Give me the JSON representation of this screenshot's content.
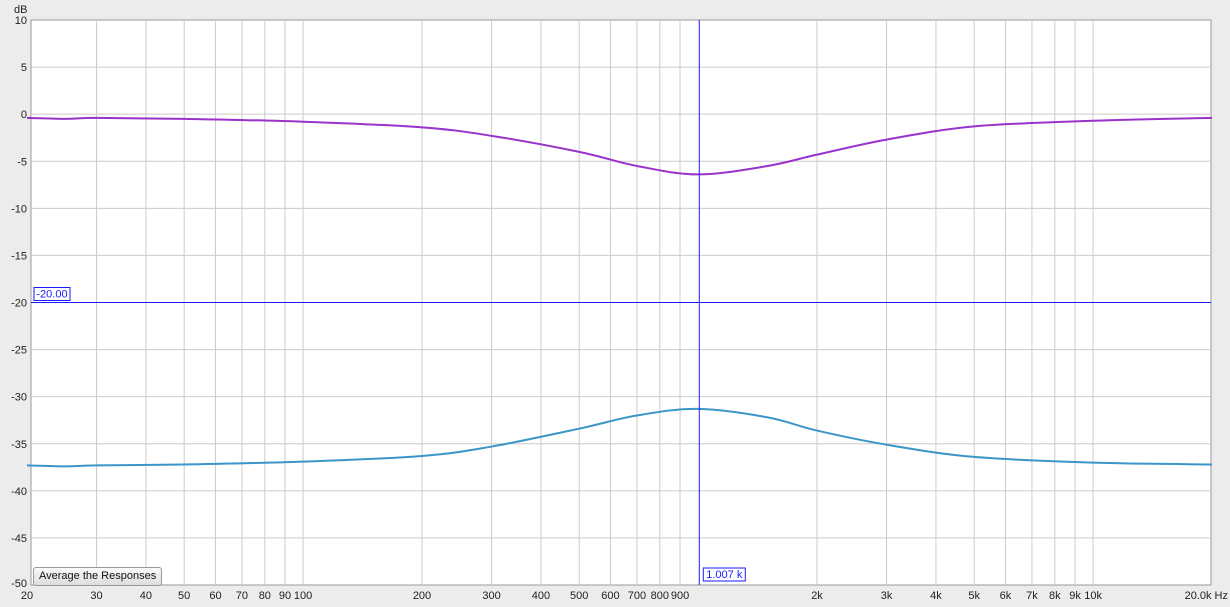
{
  "chart_data": {
    "type": "line",
    "title": "",
    "xlabel": "",
    "ylabel": "dB",
    "x_unit": "Hz",
    "x_scale": "log",
    "xlim": [
      20,
      20000
    ],
    "ylim": [
      -50,
      10
    ],
    "grid": true,
    "x_ticks": [
      {
        "v": 20,
        "l": "20"
      },
      {
        "v": 30,
        "l": "30"
      },
      {
        "v": 40,
        "l": "40"
      },
      {
        "v": 50,
        "l": "50"
      },
      {
        "v": 60,
        "l": "60"
      },
      {
        "v": 70,
        "l": "70"
      },
      {
        "v": 80,
        "l": "80"
      },
      {
        "v": 90,
        "l": "90"
      },
      {
        "v": 100,
        "l": "100"
      },
      {
        "v": 200,
        "l": "200"
      },
      {
        "v": 300,
        "l": "300"
      },
      {
        "v": 400,
        "l": "400"
      },
      {
        "v": 500,
        "l": "500"
      },
      {
        "v": 600,
        "l": "600"
      },
      {
        "v": 700,
        "l": "700"
      },
      {
        "v": 800,
        "l": "800"
      },
      {
        "v": 900,
        "l": "900"
      },
      {
        "v": 2000,
        "l": "2k"
      },
      {
        "v": 3000,
        "l": "3k"
      },
      {
        "v": 4000,
        "l": "4k"
      },
      {
        "v": 5000,
        "l": "5k"
      },
      {
        "v": 6000,
        "l": "6k"
      },
      {
        "v": 7000,
        "l": "7k"
      },
      {
        "v": 8000,
        "l": "8k"
      },
      {
        "v": 9000,
        "l": "9k"
      },
      {
        "v": 10000,
        "l": "10k"
      },
      {
        "v": 20000,
        "l": "20.0k Hz"
      }
    ],
    "y_ticks": [
      10,
      5,
      0,
      -5,
      -10,
      -15,
      -20,
      -25,
      -30,
      -35,
      -40,
      -45,
      -50
    ],
    "cursor": {
      "x": 1007,
      "x_label": "1.007 k",
      "y": -20,
      "y_label": "-20.00",
      "color": "#1a1aff"
    },
    "series": [
      {
        "color": "#9933cc",
        "x": [
          20,
          25,
          30,
          50,
          100,
          200,
          300,
          500,
          700,
          1000,
          1500,
          2000,
          3000,
          5000,
          10000,
          20000
        ],
        "y": [
          -0.4,
          -0.5,
          -0.4,
          -0.5,
          -0.8,
          -1.4,
          -2.3,
          -4.0,
          -5.5,
          -6.4,
          -5.5,
          -4.3,
          -2.7,
          -1.3,
          -0.7,
          -0.4
        ]
      },
      {
        "color": "#3a96c8",
        "x": [
          20,
          25,
          30,
          50,
          100,
          200,
          300,
          500,
          700,
          1000,
          1500,
          2000,
          3000,
          5000,
          10000,
          20000
        ],
        "y": [
          -37.3,
          -37.4,
          -37.3,
          -37.2,
          -36.9,
          -36.3,
          -35.3,
          -33.4,
          -32.0,
          -31.3,
          -32.2,
          -33.6,
          -35.1,
          -36.4,
          -37.0,
          -37.2
        ]
      }
    ]
  },
  "controls": {
    "average_button": "Average the Responses"
  }
}
